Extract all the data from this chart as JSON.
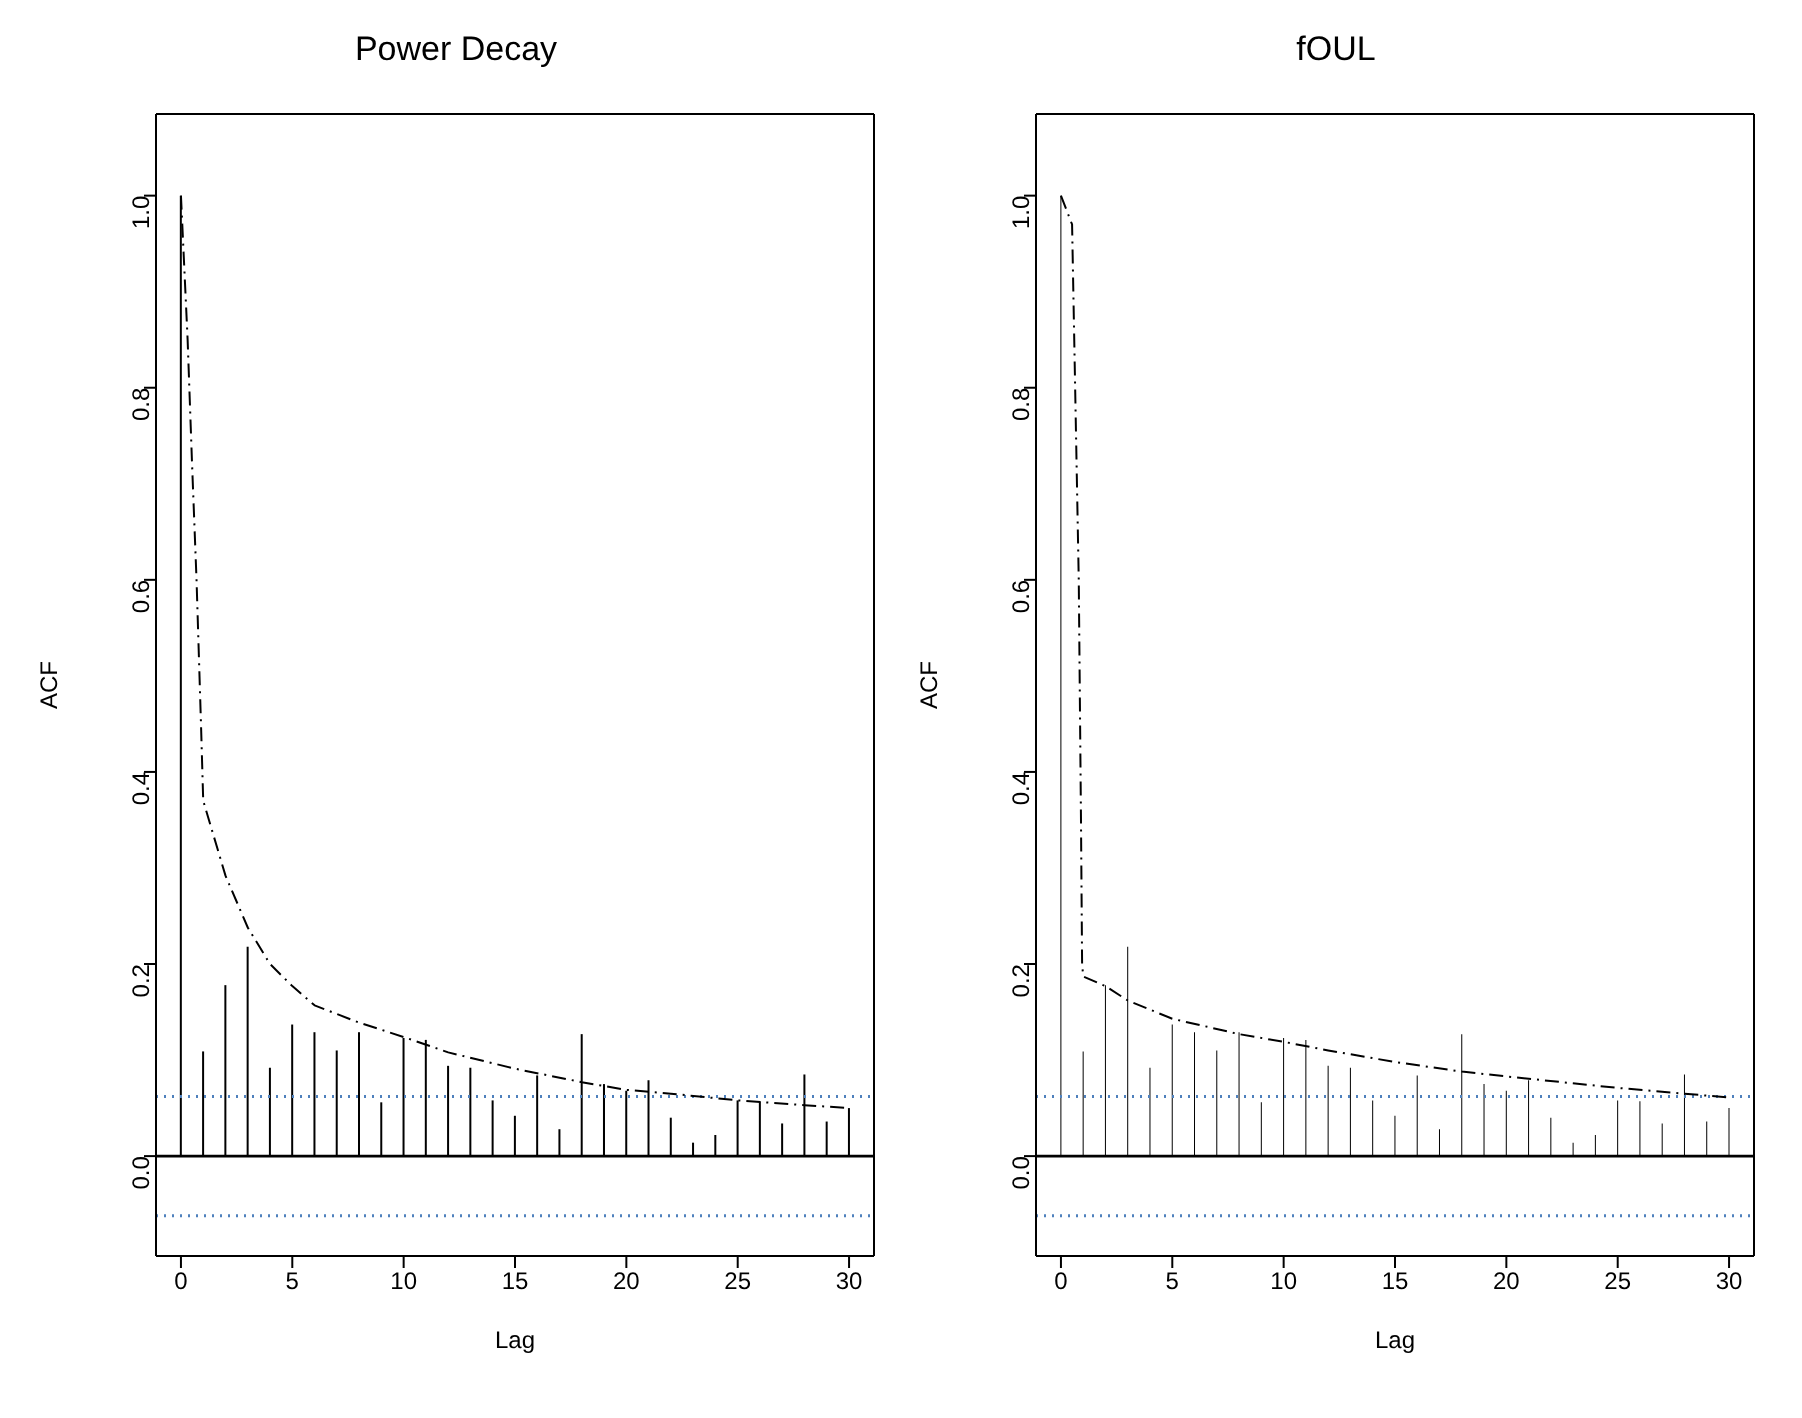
{
  "chart_data": [
    {
      "type": "bar",
      "title": "Power Decay",
      "xlabel": "Lag",
      "ylabel": "ACF",
      "xlim": [
        -1.12,
        31.12
      ],
      "xticks": [
        0,
        5,
        10,
        15,
        20,
        25,
        30
      ],
      "ylim": [
        -0.104,
        1.085
      ],
      "yticks": [
        {
          "value": 0,
          "label": "0.0"
        },
        {
          "value": 0.2,
          "label": "0.2"
        },
        {
          "value": 0.4,
          "label": "0.4"
        },
        {
          "value": 0.6,
          "label": "0.6"
        },
        {
          "value": 0.8,
          "label": "0.8"
        },
        {
          "value": 1,
          "label": "1.0"
        }
      ],
      "grid": false,
      "series": [
        {
          "color": "#000000",
          "x": [
            0,
            1,
            2,
            3,
            4,
            5,
            6,
            7,
            8,
            9,
            10,
            11,
            12,
            13,
            14,
            15,
            16,
            17,
            18,
            19,
            20,
            21,
            22,
            23,
            24,
            25,
            26,
            27,
            28,
            29,
            30
          ],
          "values": [
            1,
            0.109,
            0.178,
            0.218,
            0.092,
            0.137,
            0.129,
            0.11,
            0.129,
            0.056,
            0.123,
            0.121,
            0.094,
            0.092,
            0.058,
            0.042,
            0.084,
            0.028,
            0.127,
            0.075,
            0.068,
            0.079,
            0.04,
            0.014,
            0.022,
            0.058,
            0.057,
            0.034,
            0.085,
            0.036,
            0.05
          ]
        },
        {
          "type": "line",
          "color": "#000000",
          "line_style": "dashed",
          "marker": "none",
          "x": [
            0,
            0.3,
            0.5,
            0.7,
            0.9,
            1,
            2,
            3,
            4,
            5,
            6,
            8,
            10,
            12,
            15,
            18,
            20,
            22,
            25,
            28,
            30
          ],
          "values": [
            1,
            0.85,
            0.72,
            0.6,
            0.45,
            0.37,
            0.292,
            0.238,
            0.2,
            0.177,
            0.157,
            0.139,
            0.124,
            0.108,
            0.091,
            0.077,
            0.069,
            0.065,
            0.058,
            0.053,
            0.05
          ]
        }
      ],
      "ref_lines": [
        {
          "axis": "y",
          "value": 0,
          "color": "#000000",
          "line_style": "solid"
        },
        {
          "axis": "y",
          "value": 0.062,
          "color": "#4f81bd",
          "line_style": "dotted"
        },
        {
          "axis": "y",
          "value": -0.062,
          "color": "#4f81bd",
          "line_style": "dotted"
        }
      ]
    },
    {
      "type": "bar",
      "title": "fOUL",
      "xlabel": "Lag",
      "ylabel": "ACF",
      "xlim": [
        -1.12,
        31.12
      ],
      "xticks": [
        0,
        5,
        10,
        15,
        20,
        25,
        30
      ],
      "ylim": [
        -0.104,
        1.085
      ],
      "yticks": [
        {
          "value": 0,
          "label": "0.0"
        },
        {
          "value": 0.2,
          "label": "0.2"
        },
        {
          "value": 0.4,
          "label": "0.4"
        },
        {
          "value": 0.6,
          "label": "0.6"
        },
        {
          "value": 0.8,
          "label": "0.8"
        },
        {
          "value": 1,
          "label": "1.0"
        }
      ],
      "grid": false,
      "series": [
        {
          "color": "#000000",
          "x": [
            0,
            1,
            2,
            3,
            4,
            5,
            6,
            7,
            8,
            9,
            10,
            11,
            12,
            13,
            14,
            15,
            16,
            17,
            18,
            19,
            20,
            21,
            22,
            23,
            24,
            25,
            26,
            27,
            28,
            29,
            30
          ],
          "values": [
            1,
            0.109,
            0.178,
            0.218,
            0.092,
            0.137,
            0.129,
            0.11,
            0.129,
            0.056,
            0.123,
            0.121,
            0.094,
            0.092,
            0.058,
            0.042,
            0.084,
            0.028,
            0.127,
            0.075,
            0.068,
            0.079,
            0.04,
            0.014,
            0.022,
            0.058,
            0.057,
            0.034,
            0.085,
            0.036,
            0.05
          ]
        },
        {
          "type": "line",
          "color": "#000000",
          "line_style": "dashed",
          "marker": "none",
          "x": [
            0,
            0.5,
            0.8,
            0.9,
            0.95,
            1,
            2,
            3,
            5,
            8,
            10,
            12,
            15,
            18,
            20,
            25,
            28,
            30
          ],
          "values": [
            1,
            0.97,
            0.6,
            0.35,
            0.2,
            0.187,
            0.177,
            0.162,
            0.143,
            0.127,
            0.119,
            0.11,
            0.098,
            0.088,
            0.083,
            0.071,
            0.065,
            0.061
          ]
        }
      ],
      "ref_lines": [
        {
          "axis": "y",
          "value": 0,
          "color": "#000000",
          "line_style": "solid"
        },
        {
          "axis": "y",
          "value": 0.062,
          "color": "#4f81bd",
          "line_style": "dotted"
        },
        {
          "axis": "y",
          "value": -0.062,
          "color": "#4f81bd",
          "line_style": "dotted"
        }
      ]
    }
  ]
}
